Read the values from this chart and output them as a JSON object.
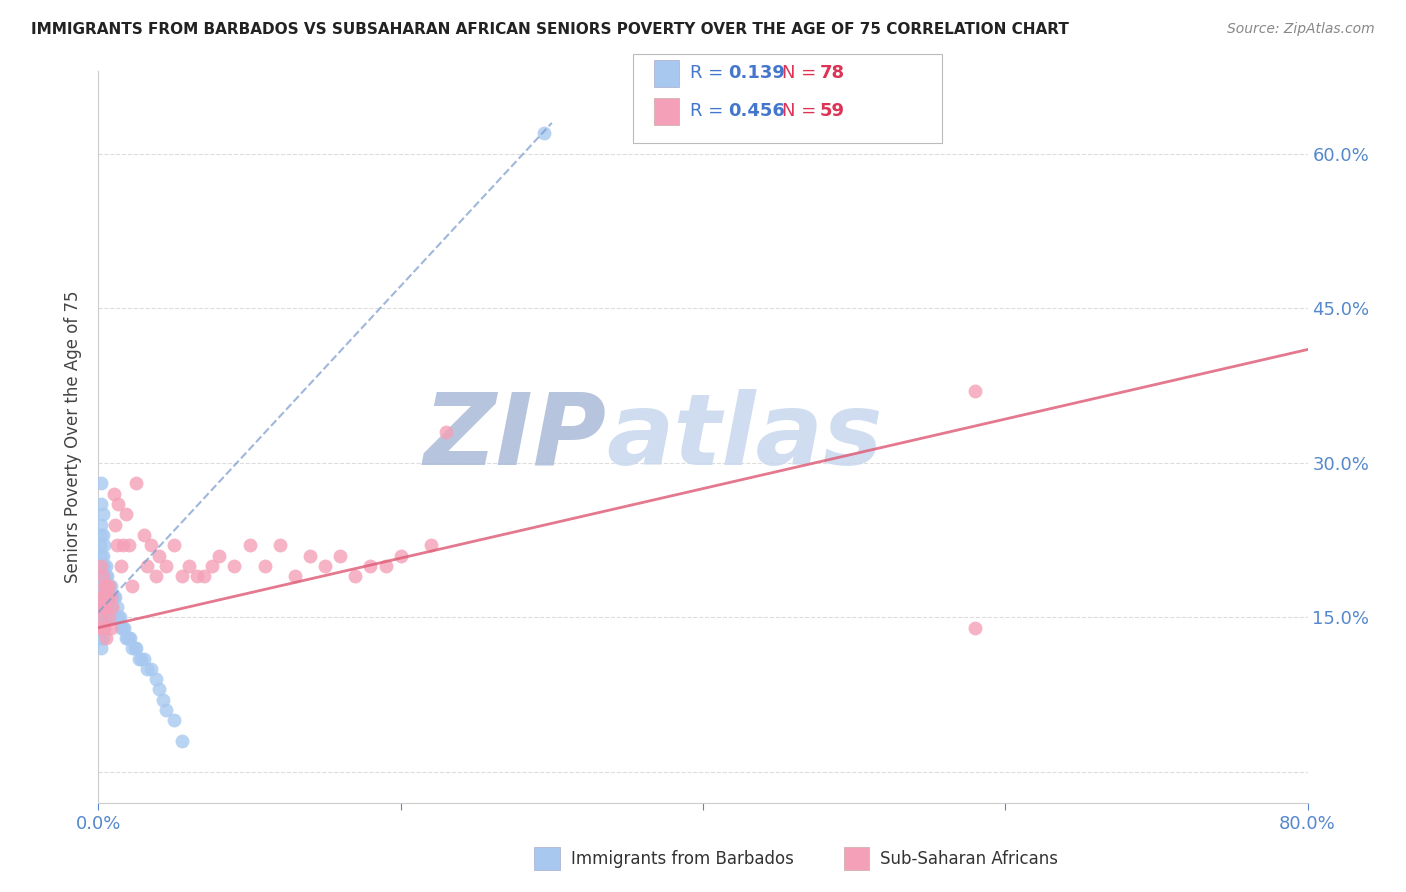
{
  "title": "IMMIGRANTS FROM BARBADOS VS SUBSAHARAN AFRICAN SENIORS POVERTY OVER THE AGE OF 75 CORRELATION CHART",
  "source": "Source: ZipAtlas.com",
  "ylabel": "Seniors Poverty Over the Age of 75",
  "xmin": 0.0,
  "xmax": 0.8,
  "ymin": -0.03,
  "ymax": 0.68,
  "yticks": [
    0.0,
    0.15,
    0.3,
    0.45,
    0.6
  ],
  "ytick_labels": [
    "",
    "15.0%",
    "30.0%",
    "45.0%",
    "60.0%"
  ],
  "xtick_vals": [
    0.0,
    0.2,
    0.4,
    0.6,
    0.8
  ],
  "series1_label": "Immigrants from Barbados",
  "series1_color": "#a8c8f0",
  "series1_line_color": "#7799cc",
  "series1_R": "0.139",
  "series1_N": "78",
  "series2_label": "Sub-Saharan Africans",
  "series2_color": "#f4a0b8",
  "series2_line_color": "#e0607a",
  "series2_R": "0.456",
  "series2_N": "59",
  "legend_R_color": "#4477cc",
  "legend_N_color": "#dd3355",
  "watermark_color": "#ccddf5",
  "background_color": "#ffffff",
  "gridline_color": "#dddddd",
  "axis_label_color": "#5588cc",
  "series1_x": [
    0.001,
    0.001,
    0.001,
    0.001,
    0.001,
    0.002,
    0.002,
    0.002,
    0.002,
    0.002,
    0.002,
    0.002,
    0.002,
    0.002,
    0.002,
    0.002,
    0.003,
    0.003,
    0.003,
    0.003,
    0.003,
    0.003,
    0.003,
    0.003,
    0.003,
    0.004,
    0.004,
    0.004,
    0.004,
    0.004,
    0.004,
    0.004,
    0.005,
    0.005,
    0.005,
    0.005,
    0.005,
    0.006,
    0.006,
    0.006,
    0.006,
    0.007,
    0.007,
    0.007,
    0.008,
    0.008,
    0.008,
    0.009,
    0.009,
    0.01,
    0.01,
    0.011,
    0.011,
    0.012,
    0.013,
    0.014,
    0.015,
    0.016,
    0.017,
    0.018,
    0.019,
    0.02,
    0.021,
    0.022,
    0.024,
    0.025,
    0.027,
    0.028,
    0.03,
    0.032,
    0.035,
    0.038,
    0.04,
    0.043,
    0.045,
    0.05,
    0.055,
    0.295
  ],
  "series1_y": [
    0.22,
    0.2,
    0.18,
    0.16,
    0.13,
    0.28,
    0.26,
    0.24,
    0.23,
    0.21,
    0.19,
    0.17,
    0.16,
    0.15,
    0.14,
    0.12,
    0.25,
    0.23,
    0.21,
    0.2,
    0.18,
    0.17,
    0.16,
    0.15,
    0.13,
    0.22,
    0.2,
    0.19,
    0.18,
    0.17,
    0.16,
    0.14,
    0.2,
    0.19,
    0.18,
    0.17,
    0.15,
    0.19,
    0.18,
    0.17,
    0.15,
    0.18,
    0.17,
    0.15,
    0.18,
    0.17,
    0.15,
    0.17,
    0.16,
    0.17,
    0.15,
    0.17,
    0.15,
    0.16,
    0.15,
    0.15,
    0.14,
    0.14,
    0.14,
    0.13,
    0.13,
    0.13,
    0.13,
    0.12,
    0.12,
    0.12,
    0.11,
    0.11,
    0.11,
    0.1,
    0.1,
    0.09,
    0.08,
    0.07,
    0.06,
    0.05,
    0.03,
    0.62
  ],
  "series2_x": [
    0.001,
    0.001,
    0.002,
    0.002,
    0.002,
    0.003,
    0.003,
    0.003,
    0.004,
    0.004,
    0.004,
    0.005,
    0.005,
    0.005,
    0.006,
    0.007,
    0.007,
    0.008,
    0.008,
    0.009,
    0.01,
    0.011,
    0.012,
    0.013,
    0.015,
    0.016,
    0.018,
    0.02,
    0.022,
    0.025,
    0.03,
    0.032,
    0.035,
    0.038,
    0.04,
    0.045,
    0.05,
    0.055,
    0.06,
    0.065,
    0.07,
    0.075,
    0.08,
    0.09,
    0.1,
    0.11,
    0.12,
    0.13,
    0.14,
    0.15,
    0.16,
    0.17,
    0.18,
    0.19,
    0.2,
    0.22,
    0.23,
    0.58,
    0.58
  ],
  "series2_y": [
    0.16,
    0.14,
    0.2,
    0.17,
    0.15,
    0.19,
    0.17,
    0.14,
    0.18,
    0.16,
    0.14,
    0.18,
    0.16,
    0.13,
    0.17,
    0.18,
    0.15,
    0.17,
    0.14,
    0.16,
    0.27,
    0.24,
    0.22,
    0.26,
    0.2,
    0.22,
    0.25,
    0.22,
    0.18,
    0.28,
    0.23,
    0.2,
    0.22,
    0.19,
    0.21,
    0.2,
    0.22,
    0.19,
    0.2,
    0.19,
    0.19,
    0.2,
    0.21,
    0.2,
    0.22,
    0.2,
    0.22,
    0.19,
    0.21,
    0.2,
    0.21,
    0.19,
    0.2,
    0.2,
    0.21,
    0.22,
    0.33,
    0.14,
    0.37
  ],
  "blue_line_x0": 0.0,
  "blue_line_y0": 0.155,
  "blue_line_x1": 0.3,
  "blue_line_y1": 0.63,
  "pink_line_x0": 0.0,
  "pink_line_y0": 0.14,
  "pink_line_x1": 0.8,
  "pink_line_y1": 0.41
}
